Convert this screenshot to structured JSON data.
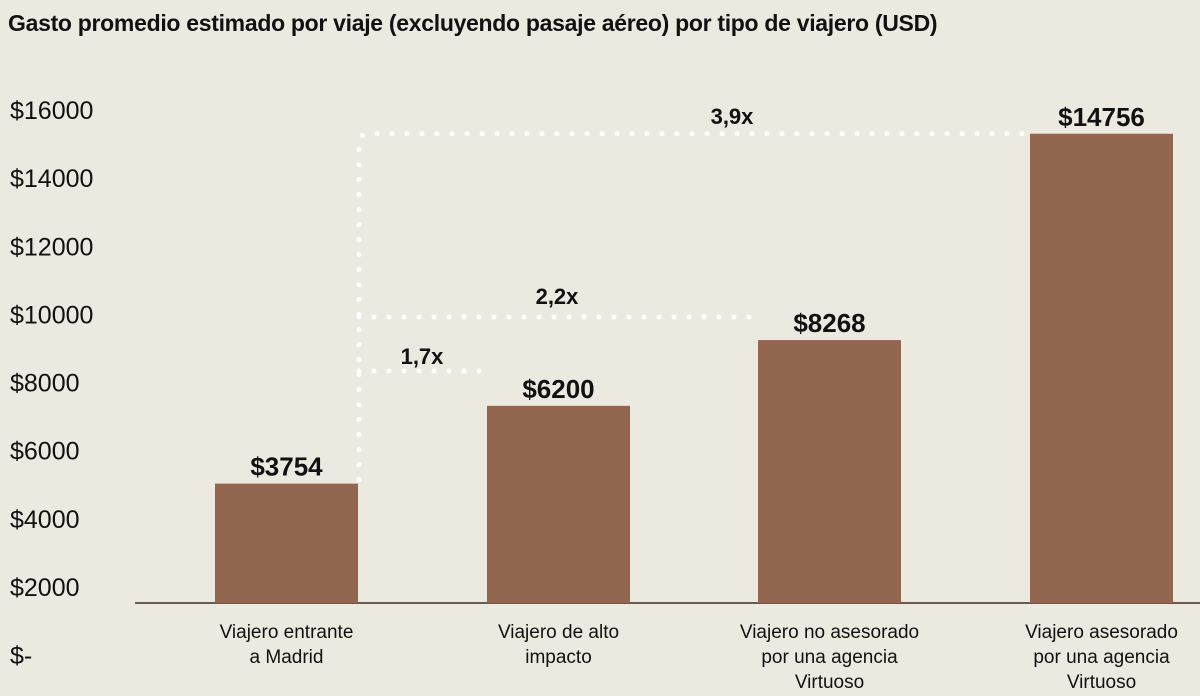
{
  "chart_data": {
    "type": "bar",
    "title": "Gasto promedio estimado por viaje (excluyendo pasaje aéreo) por tipo de viajero (USD)",
    "categories": [
      [
        "Viajero entrante",
        "a Madrid"
      ],
      [
        "Viajero de alto",
        "impacto"
      ],
      [
        "Viajero no asesorado",
        "por una agencia",
        "Virtuoso"
      ],
      [
        "Viajero asesorado",
        "por una agencia",
        "Virtuoso"
      ]
    ],
    "values": [
      3754,
      6200,
      8268,
      14756
    ],
    "value_labels": [
      "$3754",
      "$6200",
      "$8268",
      "$14756"
    ],
    "y_ticks": [
      {
        "value": 0,
        "label": "$-"
      },
      {
        "value": 2000,
        "label": "$2000"
      },
      {
        "value": 4000,
        "label": "$4000"
      },
      {
        "value": 6000,
        "label": "$6000"
      },
      {
        "value": 8000,
        "label": "$8000"
      },
      {
        "value": 10000,
        "label": "$10000"
      },
      {
        "value": 12000,
        "label": "$12000"
      },
      {
        "value": 14000,
        "label": "$14000"
      },
      {
        "value": 16000,
        "label": "$16000"
      }
    ],
    "ylim": [
      0,
      16000
    ],
    "grid": false,
    "annotations": [
      {
        "text": "1,7x",
        "from": 0,
        "to": 1
      },
      {
        "text": "2,2x",
        "from": 0,
        "to": 2
      },
      {
        "text": "3,9x",
        "from": 0,
        "to": 3
      }
    ],
    "colors": {
      "bar": "#92654E",
      "background": "#ECE9E1",
      "connector": "#FFFFFF",
      "axis": "#6B5A4E"
    }
  }
}
